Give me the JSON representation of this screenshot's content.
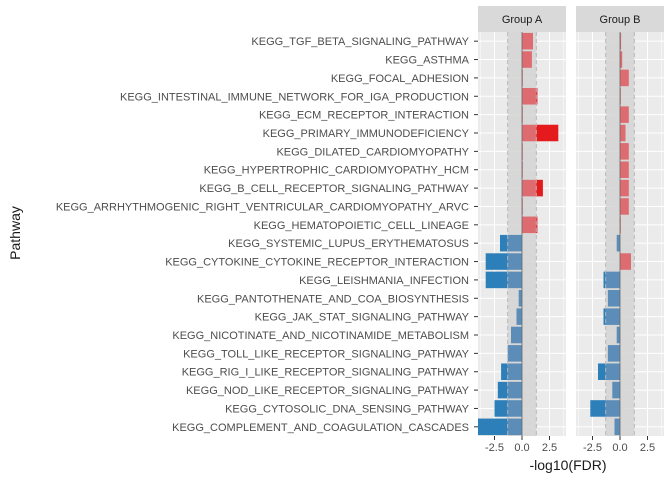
{
  "chart_data": {
    "type": "bar",
    "orientation": "horizontal",
    "ylabel": "Pathway",
    "xlabel": "-log10(FDR)",
    "xlim": [
      -4.0,
      4.0
    ],
    "xticks": [
      -2.5,
      0.0,
      2.5
    ],
    "xtick_labels": [
      "-2.5",
      "0.0",
      "2.5"
    ],
    "shaded_band": [
      -1.3,
      1.3
    ],
    "reference_lines": [
      -1.3,
      1.3
    ],
    "grid": true,
    "legend": "none",
    "colors": {
      "positive_significant": "#e41a1c",
      "positive_nonsignificant": "#de6b6f",
      "negative_significant": "#2c7fb8",
      "negative_nonsignificant": "#5b8db8",
      "panel_background": "#ebebeb",
      "strip_background": "#d9d9d9",
      "band": "#d4d4d4"
    },
    "categories": [
      "KEGG_TGF_BETA_SIGNALING_PATHWAY",
      "KEGG_ASTHMA",
      "KEGG_FOCAL_ADHESION",
      "KEGG_INTESTINAL_IMMUNE_NETWORK_FOR_IGA_PRODUCTION",
      "KEGG_ECM_RECEPTOR_INTERACTION",
      "KEGG_PRIMARY_IMMUNODEFICIENCY",
      "KEGG_DILATED_CARDIOMYOPATHY",
      "KEGG_HYPERTROPHIC_CARDIOMYOPATHY_HCM",
      "KEGG_B_CELL_RECEPTOR_SIGNALING_PATHWAY",
      "KEGG_ARRHYTHMOGENIC_RIGHT_VENTRICULAR_CARDIOMYOPATHY_ARVC",
      "KEGG_HEMATOPOIETIC_CELL_LINEAGE",
      "KEGG_SYSTEMIC_LUPUS_ERYTHEMATOSUS",
      "KEGG_CYTOKINE_CYTOKINE_RECEPTOR_INTERACTION",
      "KEGG_LEISHMANIA_INFECTION",
      "KEGG_PANTOTHENATE_AND_COA_BIOSYNTHESIS",
      "KEGG_JAK_STAT_SIGNALING_PATHWAY",
      "KEGG_NICOTINATE_AND_NICOTINAMIDE_METABOLISM",
      "KEGG_TOLL_LIKE_RECEPTOR_SIGNALING_PATHWAY",
      "KEGG_RIG_I_LIKE_RECEPTOR_SIGNALING_PATHWAY",
      "KEGG_NOD_LIKE_RECEPTOR_SIGNALING_PATHWAY",
      "KEGG_CYTOSOLIC_DNA_SENSING_PATHWAY",
      "KEGG_COMPLEMENT_AND_COAGULATION_CASCADES"
    ],
    "series": [
      {
        "name": "Group A",
        "values": [
          1.0,
          0.9,
          0.05,
          1.4,
          0.05,
          3.3,
          0.05,
          0.05,
          1.9,
          0.05,
          1.4,
          -2.0,
          -3.3,
          -3.3,
          -0.3,
          -0.5,
          -1.0,
          -1.3,
          -1.9,
          -2.2,
          -2.5,
          -4.0
        ]
      },
      {
        "name": "Group B",
        "values": [
          0.1,
          0.2,
          0.8,
          0.05,
          0.8,
          0.5,
          0.8,
          0.8,
          0.8,
          0.8,
          0.05,
          -0.3,
          1.0,
          -1.5,
          -1.1,
          -1.5,
          -0.3,
          -1.1,
          -2.0,
          -0.7,
          -2.7,
          -0.5
        ]
      }
    ]
  }
}
